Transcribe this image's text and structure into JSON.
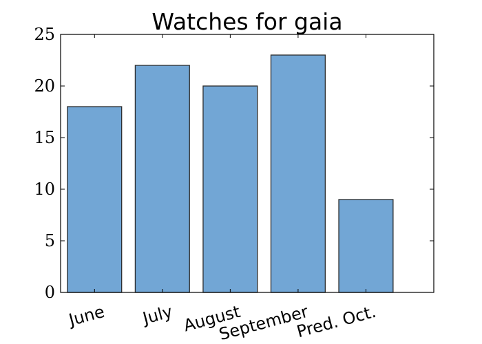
{
  "chart_data": {
    "type": "bar",
    "title": "Watches for gaia",
    "xlabel": "",
    "ylabel": "",
    "categories": [
      "June",
      "July",
      "August",
      "September",
      "Pred. Oct."
    ],
    "values": [
      18,
      22,
      20,
      23,
      9
    ],
    "ylim": [
      0,
      25
    ],
    "yticks": [
      "0",
      "5",
      "10",
      "15",
      "20",
      "25"
    ],
    "grid": false,
    "bar_color": "#72a6d5",
    "bar_edge_color": "#2b2b2b"
  }
}
